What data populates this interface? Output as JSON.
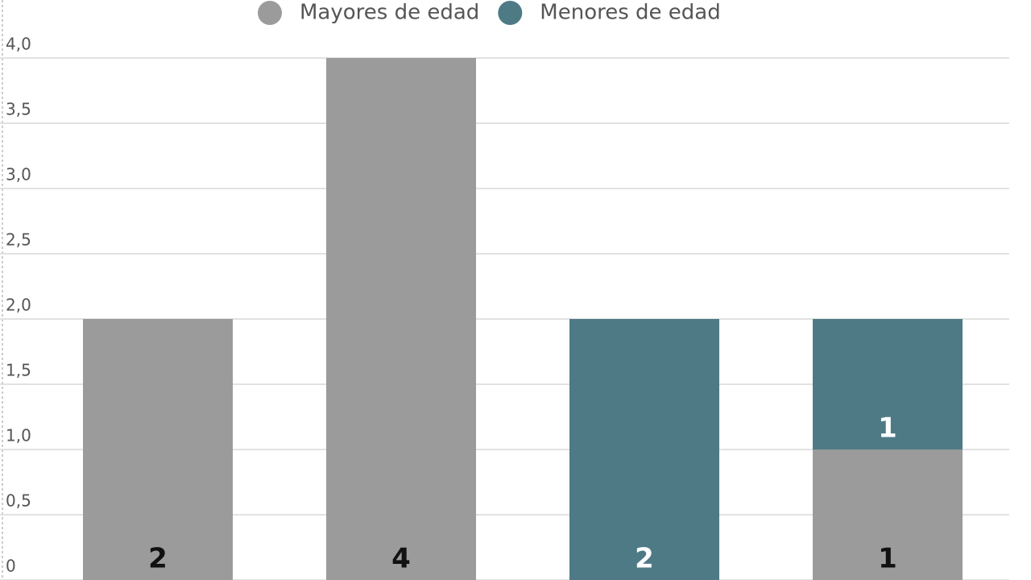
{
  "chart_data": {
    "type": "stacked_bar",
    "categories": [
      null,
      null,
      null,
      null
    ],
    "series": [
      {
        "name": "Mayores de edad",
        "color": "#9b9b9b",
        "label_color": "#111111",
        "values": [
          2,
          4,
          null,
          1
        ]
      },
      {
        "name": "Menores de edad",
        "color": "#4e7a86",
        "label_color": "#ffffff",
        "values": [
          null,
          null,
          2,
          1
        ]
      }
    ],
    "ylim": [
      0,
      4
    ],
    "yticks": [
      0,
      {
        "value": 0.5,
        "label": "0,5"
      },
      {
        "value": 1,
        "label": "1,0"
      },
      {
        "value": 1.5,
        "label": "1,5"
      },
      {
        "value": 2,
        "label": "2,0"
      },
      {
        "value": 2.5,
        "label": "2,5"
      },
      {
        "value": 3,
        "label": "3,0"
      },
      {
        "value": 3.5,
        "label": "3,5"
      },
      {
        "value": 4,
        "label": "4,0"
      }
    ],
    "grid": true,
    "legend": "top"
  }
}
